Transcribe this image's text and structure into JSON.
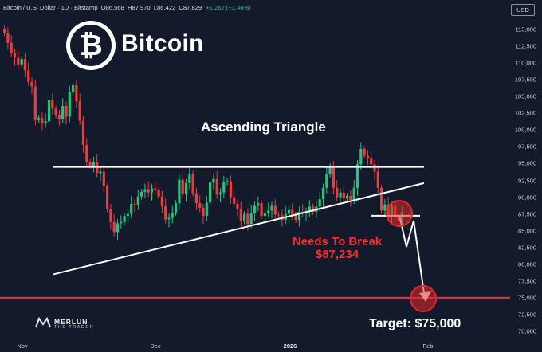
{
  "header": {
    "symbol": "Bitcoin / U.S. Dollar · 1D · Bitstamp",
    "open": "O86,568",
    "high": "H87,970",
    "low": "L86,422",
    "close": "C87,829",
    "change": "+1,262 (+1.46%)"
  },
  "currency_button": "USD",
  "logo": {
    "glyph": "₿",
    "name": "Bitcoin",
    "icon": "bitcoin-logo-icon"
  },
  "annotations": {
    "pattern": "Ascending Triangle",
    "break_line1": "Needs To Break",
    "break_line2": "$87,234",
    "target": "Target: $75,000"
  },
  "watermark": {
    "name": "MERLUN",
    "sub": "THE TRADER"
  },
  "colors": {
    "background": "#131a2c",
    "up": "#26c281",
    "down": "#ef3b3b",
    "line": "#ffffff",
    "alert": "#ff2b2b"
  },
  "chart_data": {
    "type": "candlestick",
    "y_range": [
      69000,
      118500
    ],
    "y_ticks": [
      "115,000",
      "112,500",
      "110,000",
      "107,500",
      "105,000",
      "102,500",
      "100,000",
      "97,500",
      "95,000",
      "92,500",
      "90,000",
      "87,500",
      "85,000",
      "82,500",
      "80,000",
      "77,500",
      "75,000",
      "72,500",
      "70,000"
    ],
    "x_ticks": [
      {
        "label": "Nov",
        "bold": false
      },
      {
        "label": "Dec",
        "bold": false
      },
      {
        "label": "2026",
        "bold": true
      },
      {
        "label": "Feb",
        "bold": false
      }
    ],
    "resistance": 94500,
    "support_line": {
      "from": 78500,
      "to": 92100
    },
    "break_level": 87234,
    "target_level": 75000,
    "closes": [
      114500,
      113000,
      111500,
      110800,
      109800,
      110600,
      108900,
      107200,
      106500,
      101500,
      101800,
      101000,
      101300,
      104500,
      103200,
      102200,
      101700,
      103600,
      102000,
      105600,
      106700,
      104300,
      101400,
      97800,
      95200,
      94700,
      95200,
      93600,
      93800,
      91600,
      88200,
      86300,
      84800,
      86100,
      86300,
      87200,
      87500,
      89000,
      88900,
      90100,
      90800,
      91200,
      90700,
      91300,
      91100,
      90100,
      88600,
      86700,
      86900,
      87700,
      89100,
      92600,
      90500,
      92100,
      93500,
      90600,
      89100,
      88400,
      87200,
      89200,
      92200,
      92700,
      90400,
      90700,
      92200,
      92400,
      90000,
      89000,
      88300,
      86400,
      87500,
      86000,
      87600,
      88700,
      89100,
      87200,
      87600,
      88000,
      88700,
      87400,
      87300,
      86600,
      87500,
      88100,
      87400,
      86600,
      87800,
      87600,
      87800,
      88600,
      87800,
      88600,
      89700,
      91400,
      93400,
      94600,
      91400,
      90000,
      90700,
      89800,
      90200,
      89600,
      91400,
      94900,
      97200,
      96200,
      95800,
      94900,
      93800,
      91400,
      88000,
      88900,
      87300,
      88700,
      87000,
      86400,
      87800
    ]
  }
}
